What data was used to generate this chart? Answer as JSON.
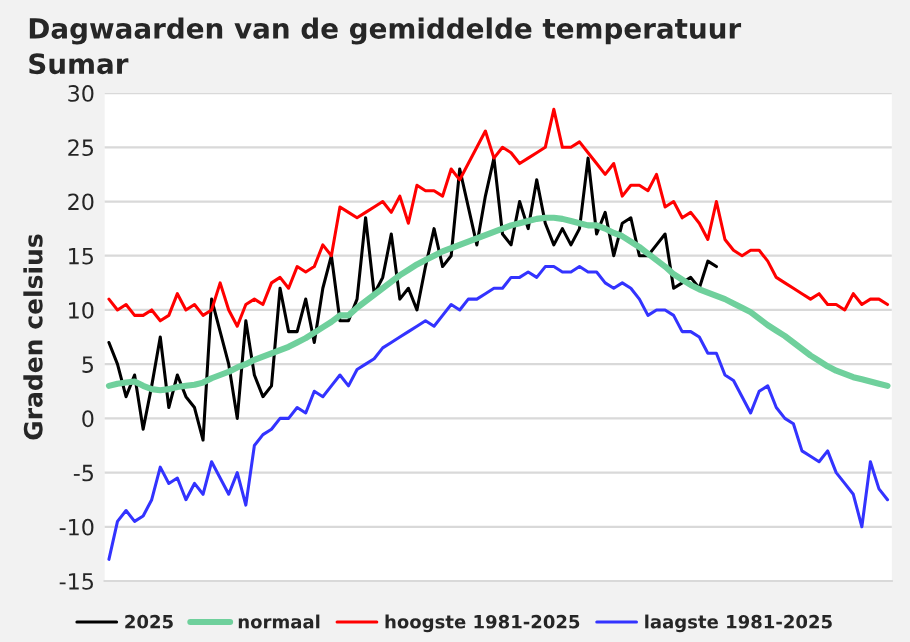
{
  "chart_data": {
    "type": "line",
    "title": "Dagwaarden van de gemiddelde temperatuur",
    "subtitle": "Sumar",
    "ylabel": "Graden celsius",
    "categories": [
      null,
      null,
      null,
      null,
      null,
      null,
      null,
      null,
      null,
      null,
      null,
      null,
      null,
      null,
      null,
      null,
      null,
      null,
      null,
      null,
      null,
      null,
      null,
      null,
      null,
      null,
      null,
      null,
      null,
      null,
      null,
      null,
      null,
      null,
      null,
      null,
      null,
      null,
      null,
      null,
      null,
      null,
      null,
      null,
      null,
      null,
      null,
      null,
      null,
      null,
      null,
      null,
      null,
      null,
      null,
      null,
      null,
      null,
      null,
      null,
      null,
      null,
      null,
      null,
      null,
      null,
      null,
      null,
      null,
      null,
      null,
      null,
      null,
      null,
      null,
      null,
      null,
      null,
      null,
      null,
      null,
      null,
      null,
      null,
      null,
      null,
      null,
      null,
      null,
      null,
      null,
      null
    ],
    "ylim": [
      -15,
      30
    ],
    "yticks": [
      -15,
      -10,
      -5,
      0,
      5,
      10,
      15,
      20,
      25,
      30
    ],
    "grid": "y",
    "legend": "bottom",
    "line_style": "solid",
    "marker": "none",
    "series": [
      {
        "name": "2025",
        "color": "#000000",
        "values": [
          7,
          5,
          2,
          4,
          -1,
          3,
          7.5,
          1,
          4,
          2,
          1,
          -2,
          11,
          8,
          5,
          0,
          9,
          4,
          2,
          3,
          12,
          8,
          8,
          11,
          7,
          12,
          15,
          9,
          9,
          11,
          18.5,
          11.5,
          13,
          17,
          11,
          12,
          10,
          14,
          17.5,
          14,
          15,
          23,
          19.5,
          16,
          20.5,
          24,
          17,
          16,
          20,
          17.5,
          22,
          18,
          16,
          17.5,
          16,
          17.5,
          24,
          17,
          19,
          15,
          18,
          18.5,
          15,
          15,
          16,
          17,
          12,
          12.5,
          13,
          12,
          14.5,
          14,
          null,
          null,
          null,
          null,
          null,
          null,
          null,
          null,
          null,
          null,
          null,
          null,
          null,
          null,
          null,
          null,
          null,
          null,
          null,
          null
        ]
      },
      {
        "name": "normaal",
        "color": "#6fd09c",
        "values": [
          3,
          3.2,
          3.3,
          3.4,
          3.0,
          2.7,
          2.6,
          2.7,
          2.9,
          3.0,
          3.1,
          3.3,
          3.7,
          4.0,
          4.3,
          4.7,
          5.0,
          5.4,
          5.7,
          6.0,
          6.3,
          6.6,
          7.0,
          7.4,
          7.9,
          8.4,
          8.9,
          9.5,
          9.5,
          10.2,
          10.8,
          11.4,
          12,
          12.6,
          13.2,
          13.7,
          14.2,
          14.6,
          15,
          15.4,
          15.7,
          16,
          16.3,
          16.6,
          16.9,
          17.2,
          17.5,
          17.8,
          18,
          18.2,
          18.4,
          18.5,
          18.5,
          18.4,
          18.2,
          18,
          17.8,
          17.8,
          17.5,
          17.1,
          16.8,
          16.3,
          15.8,
          15.2,
          14.6,
          14.0,
          13.3,
          12.8,
          12.3,
          11.9,
          11.6,
          11.3,
          11.0,
          10.6,
          10.2,
          9.8,
          9.2,
          8.6,
          8.1,
          7.6,
          7.0,
          6.4,
          5.8,
          5.3,
          4.8,
          4.4,
          4.1,
          3.8,
          3.6,
          3.4,
          3.2,
          3.0
        ]
      },
      {
        "name": "hoogste 1981-2025",
        "color": "#ff0000",
        "values": [
          11,
          10,
          10.5,
          9.5,
          9.5,
          10,
          9,
          9.5,
          11.5,
          10,
          10.5,
          9.5,
          10,
          12.5,
          10,
          8.5,
          10.5,
          11,
          10.5,
          12.5,
          13,
          12,
          14,
          13.5,
          14,
          16,
          15,
          19.5,
          19,
          18.5,
          19,
          19.5,
          20,
          19,
          20.5,
          18,
          21.5,
          21,
          21,
          20.5,
          23,
          22,
          23.5,
          25,
          26.5,
          24,
          25,
          24.5,
          23.5,
          24,
          24.5,
          25,
          28.5,
          25,
          25,
          25.5,
          24.5,
          23.5,
          22.5,
          23.5,
          20.5,
          21.5,
          21.5,
          21,
          22.5,
          19.5,
          20,
          18.5,
          19,
          18,
          16.5,
          20,
          16.5,
          15.5,
          15,
          15.5,
          15.5,
          14.5,
          13,
          12.5,
          12,
          11.5,
          11,
          11.5,
          10.5,
          10.5,
          10,
          11.5,
          10.5,
          11,
          11,
          10.5
        ]
      },
      {
        "name": "laagste 1981-2025",
        "color": "#3333ff",
        "values": [
          -13,
          -9.5,
          -8.5,
          -9.5,
          -9,
          -7.5,
          -4.5,
          -6,
          -5.5,
          -7.5,
          -6,
          -7,
          -4,
          -5.5,
          -7,
          -5,
          -8,
          -2.5,
          -1.5,
          -1,
          0,
          0,
          1,
          0.5,
          2.5,
          2,
          3,
          4,
          3,
          4.5,
          5,
          5.5,
          6.5,
          7,
          7.5,
          8,
          8.5,
          9,
          8.5,
          9.5,
          10.5,
          10,
          11,
          11,
          11.5,
          12,
          12,
          13,
          13,
          13.5,
          13,
          14,
          14,
          13.5,
          13.5,
          14,
          13.5,
          13.5,
          12.5,
          12,
          12.5,
          12,
          11,
          9.5,
          10,
          10,
          9.5,
          8,
          8,
          7.5,
          6,
          6,
          4,
          3.5,
          2,
          0.5,
          2.5,
          3,
          1,
          0,
          -0.5,
          -3,
          -3.5,
          -4,
          -3,
          -5,
          -6,
          -7,
          -10,
          -4,
          -6.5,
          -7.5
        ]
      }
    ]
  }
}
